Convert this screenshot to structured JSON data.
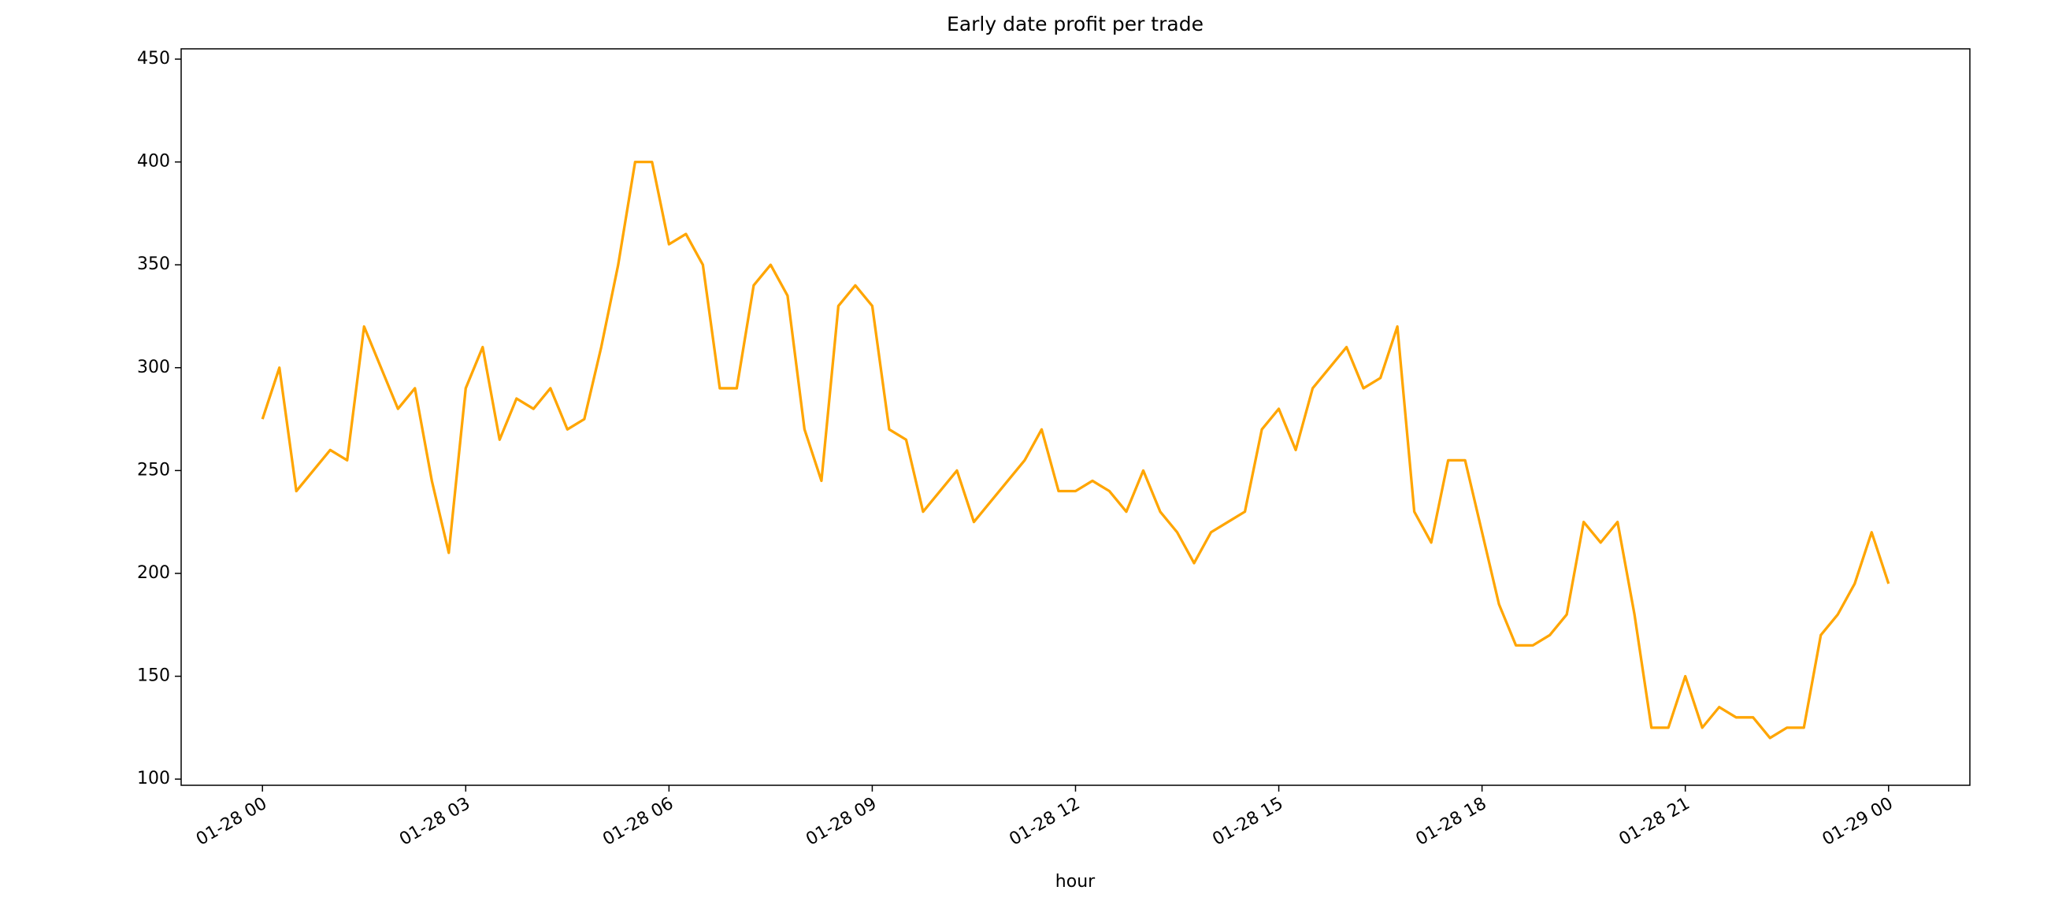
{
  "chart_data": {
    "type": "line",
    "title": "Early date profit per trade",
    "x_label": "hour",
    "x": [
      0,
      0.25,
      0.5,
      0.75,
      1,
      1.25,
      1.5,
      1.75,
      2,
      2.25,
      2.5,
      2.75,
      3,
      3.25,
      3.5,
      3.75,
      4,
      4.25,
      4.5,
      4.75,
      5,
      5.25,
      5.5,
      5.75,
      6,
      6.25,
      6.5,
      6.75,
      7,
      7.25,
      7.5,
      7.75,
      8,
      8.25,
      8.5,
      8.75,
      9,
      9.25,
      9.5,
      9.75,
      10,
      10.25,
      10.5,
      10.75,
      11,
      11.25,
      11.5,
      11.75,
      12,
      12.25,
      12.5,
      12.75,
      13,
      13.25,
      13.5,
      13.75,
      14,
      14.25,
      14.5,
      14.75,
      15,
      15.25,
      15.5,
      15.75,
      16,
      16.25,
      16.5,
      16.75,
      17,
      17.25,
      17.5,
      17.75,
      18,
      18.25,
      18.5,
      18.75,
      19,
      19.25,
      19.5,
      19.75,
      20,
      20.25,
      20.5,
      20.75,
      21,
      21.25,
      21.5,
      21.75,
      22,
      22.25,
      22.5,
      22.75,
      23,
      23.25,
      23.5,
      23.75,
      24
    ],
    "values": [
      275,
      300,
      240,
      250,
      260,
      255,
      320,
      300,
      280,
      290,
      245,
      210,
      290,
      310,
      265,
      285,
      280,
      290,
      270,
      275,
      310,
      350,
      400,
      400,
      360,
      365,
      350,
      290,
      290,
      340,
      350,
      335,
      270,
      245,
      330,
      340,
      330,
      270,
      265,
      230,
      240,
      250,
      225,
      235,
      245,
      255,
      270,
      240,
      240,
      245,
      240,
      230,
      250,
      230,
      220,
      205,
      220,
      225,
      230,
      270,
      280,
      260,
      290,
      300,
      310,
      290,
      295,
      320,
      230,
      215,
      255,
      255,
      220,
      185,
      165,
      165,
      170,
      180,
      225,
      215,
      225,
      180,
      125,
      125,
      150,
      125,
      135,
      130,
      130,
      120,
      125,
      125,
      170,
      180,
      195,
      220,
      195
    ],
    "color": "#ffa500",
    "xlim": [
      -1.2,
      25.2
    ],
    "xticks": [
      {
        "value": 0,
        "label": "01-28 00"
      },
      {
        "value": 3,
        "label": "01-28 03"
      },
      {
        "value": 6,
        "label": "01-28 06"
      },
      {
        "value": 9,
        "label": "01-28 09"
      },
      {
        "value": 12,
        "label": "01-28 12"
      },
      {
        "value": 15,
        "label": "01-28 15"
      },
      {
        "value": 18,
        "label": "01-28 18"
      },
      {
        "value": 21,
        "label": "01-28 21"
      },
      {
        "value": 24,
        "label": "01-29 00"
      }
    ],
    "ylim": [
      97,
      455
    ],
    "yticks": [
      100,
      150,
      200,
      250,
      300,
      350,
      400,
      450
    ],
    "grid": false
  }
}
